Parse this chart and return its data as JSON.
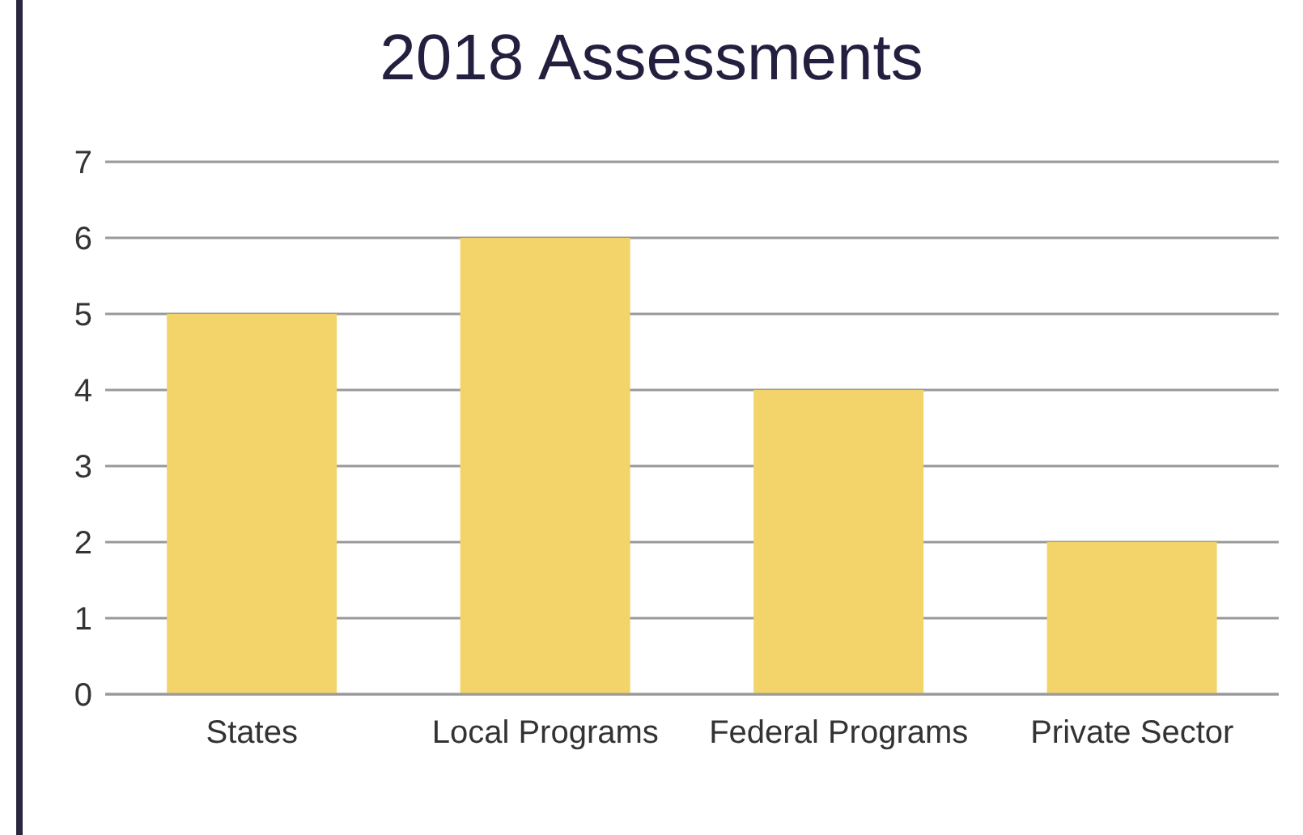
{
  "chart_data": {
    "type": "bar",
    "title": "2018 Assessments",
    "categories": [
      "States",
      "Local Programs",
      "Federal Programs",
      "Private Sector"
    ],
    "values": [
      5,
      6,
      4,
      2
    ],
    "color": "#f2d46b",
    "ylim": [
      0,
      7
    ],
    "yticks": [
      0,
      1,
      2,
      3,
      4,
      5,
      6,
      7
    ],
    "grid": "y"
  }
}
